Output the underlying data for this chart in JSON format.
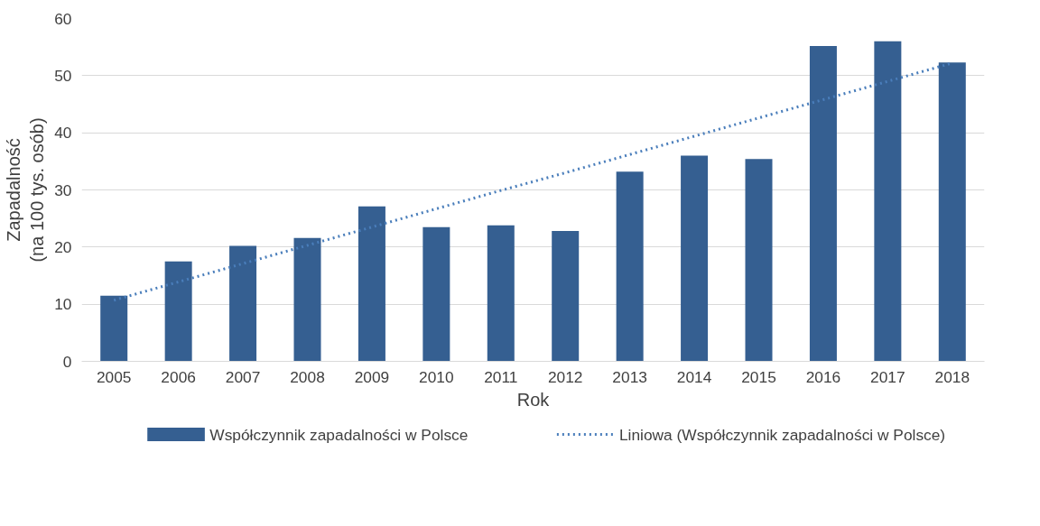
{
  "chart_data": {
    "type": "bar",
    "xlabel": "Rok",
    "ylabel": "Zapadalność\n(na 100 tys. osób)",
    "categories": [
      "2005",
      "2006",
      "2007",
      "2008",
      "2009",
      "2010",
      "2011",
      "2012",
      "2013",
      "2014",
      "2015",
      "2016",
      "2017",
      "2018"
    ],
    "series": [
      {
        "name": "Współczynnik zapadalności w Polsce",
        "color": "#355f91",
        "values": [
          11.5,
          17.5,
          20.2,
          21.6,
          27.1,
          23.5,
          23.8,
          22.8,
          33.2,
          36.0,
          35.4,
          55.2,
          56.0,
          52.3
        ]
      },
      {
        "name": "Liniowa (Współczynnik zapadalności w Polsce)",
        "type": "line",
        "line_style": "dotted",
        "color": "#4a7ebb",
        "values": [
          10.7,
          13.9,
          17.1,
          20.3,
          23.5,
          26.7,
          29.9,
          33.0,
          36.2,
          39.4,
          42.6,
          45.8,
          49.0,
          52.2
        ]
      }
    ],
    "ylim": [
      0,
      60
    ],
    "yticks": [
      0,
      10,
      20,
      30,
      40,
      50,
      60
    ],
    "grid": "y",
    "legend": "bottom"
  }
}
